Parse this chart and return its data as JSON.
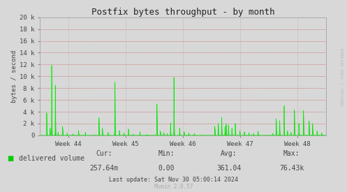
{
  "title": "Postfix bytes throughput - by month",
  "ylabel": "bytes / second",
  "background_color": "#d8d8d8",
  "plot_bg_color": "#d8d8d8",
  "line_color": "#00ee00",
  "fill_color": "#00bb00",
  "grid_color_h": "#ff9999",
  "grid_color_v": "#cc9999",
  "ylim": [
    0,
    20000
  ],
  "yticks": [
    0,
    2000,
    4000,
    6000,
    8000,
    10000,
    12000,
    14000,
    16000,
    18000,
    20000
  ],
  "ytick_labels": [
    "0",
    "2 k",
    "4 k",
    "6 k",
    "8 k",
    "10 k",
    "12 k",
    "14 k",
    "16 k",
    "18 k",
    "20 k"
  ],
  "xtick_labels": [
    "Week 44",
    "Week 45",
    "Week 46",
    "Week 47",
    "Week 48"
  ],
  "legend_label": "delivered volume",
  "legend_color": "#00cc00",
  "cur_val": "257.64m",
  "min_val": "0.00",
  "avg_val": "361.04",
  "max_val": "76.43k",
  "last_update": "Last update: Sat Nov 30 05:00:14 2024",
  "munin_version": "Munin 2.0.57",
  "watermark": "RRDTOOL / TOBI OETIKER",
  "title_fontsize": 9,
  "axis_fontsize": 6.5,
  "label_fontsize": 7
}
